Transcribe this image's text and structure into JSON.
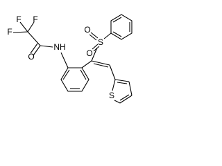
{
  "atoms": {
    "f1": "F",
    "f2": "F",
    "f3": "F",
    "carbonyl_o": "O",
    "amide_n": "NH",
    "sulfonyl_s": "S",
    "sulfonyl_o1": "O",
    "sulfonyl_o2": "O",
    "thiophene_s": "S"
  }
}
